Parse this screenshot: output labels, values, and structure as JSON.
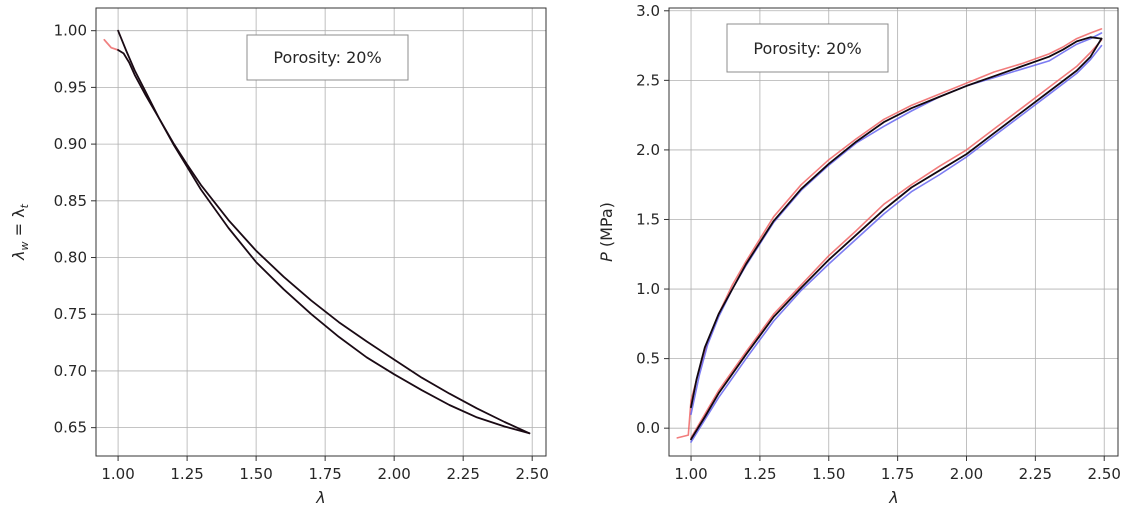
{
  "chart_data": [
    {
      "type": "line",
      "title": "",
      "xlabel": "λ",
      "ylabel": "λw = λt",
      "ylabel_parts": {
        "base": "λ",
        "sub1": "w",
        "mid": " = λ",
        "sub2": "t"
      },
      "xlim": [
        0.92,
        2.55
      ],
      "ylim": [
        0.625,
        1.02
      ],
      "xticks": [
        1.0,
        1.25,
        1.5,
        1.75,
        2.0,
        2.25,
        2.5
      ],
      "xtick_labels": [
        "1.00",
        "1.25",
        "1.50",
        "1.75",
        "2.00",
        "2.25",
        "2.50"
      ],
      "yticks": [
        0.65,
        0.7,
        0.75,
        0.8,
        0.85,
        0.9,
        0.95,
        1.0
      ],
      "ytick_labels": [
        "0.65",
        "0.70",
        "0.75",
        "0.80",
        "0.85",
        "0.90",
        "0.95",
        "1.00"
      ],
      "grid": true,
      "annotation": "Porosity: 20%",
      "annotation_position": "top-center",
      "series": [
        {
          "color": "#f08080",
          "x": [
            0.95,
            0.975,
            1.0
          ],
          "y": [
            0.992,
            0.985,
            0.983
          ]
        },
        {
          "color": "#1a0a14",
          "x": [
            1.0,
            1.03,
            1.06,
            1.1,
            1.15,
            1.2,
            1.25,
            1.3,
            1.4,
            1.5,
            1.6,
            1.7,
            1.8,
            1.9,
            2.0,
            2.1,
            2.2,
            2.3,
            2.4,
            2.49
          ],
          "y": [
            1.0,
            0.982,
            0.965,
            0.946,
            0.922,
            0.9,
            0.88,
            0.86,
            0.826,
            0.796,
            0.772,
            0.75,
            0.73,
            0.712,
            0.697,
            0.683,
            0.67,
            0.659,
            0.651,
            0.645
          ]
        },
        {
          "color": "#1a0a14",
          "x": [
            1.0,
            1.02,
            1.04,
            1.06,
            1.1,
            1.15,
            1.2,
            1.25,
            1.3,
            1.4,
            1.5,
            1.6,
            1.7,
            1.8,
            1.9,
            2.0,
            2.1,
            2.2,
            2.3,
            2.4,
            2.49
          ],
          "y": [
            0.983,
            0.98,
            0.972,
            0.961,
            0.943,
            0.922,
            0.901,
            0.882,
            0.864,
            0.833,
            0.806,
            0.783,
            0.762,
            0.743,
            0.726,
            0.71,
            0.694,
            0.68,
            0.667,
            0.655,
            0.645
          ]
        }
      ]
    },
    {
      "type": "line",
      "title": "",
      "xlabel": "λ",
      "ylabel": "P (MPa)",
      "ylabel_parts": {
        "italic": "P",
        "rest": " (MPa)"
      },
      "xlim": [
        0.92,
        2.55
      ],
      "ylim": [
        -0.2,
        3.02
      ],
      "xticks": [
        1.0,
        1.25,
        1.5,
        1.75,
        2.0,
        2.25,
        2.5
      ],
      "xtick_labels": [
        "1.00",
        "1.25",
        "1.50",
        "1.75",
        "2.00",
        "2.25",
        "2.50"
      ],
      "yticks": [
        0.0,
        0.5,
        1.0,
        1.5,
        2.0,
        2.5,
        3.0
      ],
      "ytick_labels": [
        "0.0",
        "0.5",
        "1.0",
        "1.5",
        "2.0",
        "2.5",
        "3.0"
      ],
      "grid": true,
      "annotation": "Porosity: 20%",
      "annotation_position": "top-left",
      "series": [
        {
          "color": "#ef5b5b",
          "opacity": 0.8,
          "x": [
            0.95,
            0.99,
            1.0,
            1.03,
            1.06,
            1.1,
            1.15,
            1.2,
            1.3,
            1.4,
            1.5,
            1.6,
            1.7,
            1.8,
            1.9,
            2.0,
            2.1,
            2.2,
            2.3,
            2.35,
            2.4,
            2.45,
            2.49
          ],
          "y": [
            -0.07,
            -0.05,
            0.2,
            0.42,
            0.62,
            0.82,
            1.03,
            1.2,
            1.52,
            1.75,
            1.93,
            2.08,
            2.22,
            2.32,
            2.4,
            2.48,
            2.56,
            2.62,
            2.69,
            2.74,
            2.8,
            2.84,
            2.87
          ]
        },
        {
          "color": "#ef5b5b",
          "opacity": 0.8,
          "x": [
            1.0,
            1.05,
            1.1,
            1.2,
            1.3,
            1.4,
            1.5,
            1.6,
            1.7,
            1.8,
            1.9,
            2.0,
            2.1,
            2.2,
            2.3,
            2.4,
            2.45,
            2.49
          ],
          "y": [
            -0.07,
            0.1,
            0.27,
            0.55,
            0.82,
            1.03,
            1.24,
            1.42,
            1.61,
            1.75,
            1.88,
            2.0,
            2.15,
            2.3,
            2.45,
            2.6,
            2.7,
            2.79
          ]
        },
        {
          "color": "#5b5bef",
          "opacity": 0.8,
          "x": [
            1.0,
            1.03,
            1.06,
            1.1,
            1.15,
            1.2,
            1.3,
            1.4,
            1.5,
            1.6,
            1.7,
            1.8,
            1.9,
            2.0,
            2.1,
            2.2,
            2.3,
            2.35,
            2.4,
            2.45,
            2.49
          ],
          "y": [
            0.1,
            0.38,
            0.6,
            0.8,
            1.0,
            1.17,
            1.48,
            1.71,
            1.89,
            2.05,
            2.17,
            2.28,
            2.38,
            2.46,
            2.52,
            2.58,
            2.64,
            2.7,
            2.76,
            2.8,
            2.84
          ]
        },
        {
          "color": "#5b5bef",
          "opacity": 0.8,
          "x": [
            1.0,
            1.05,
            1.1,
            1.2,
            1.3,
            1.4,
            1.5,
            1.6,
            1.7,
            1.8,
            1.9,
            2.0,
            2.1,
            2.2,
            2.3,
            2.4,
            2.45,
            2.49
          ],
          "y": [
            -0.1,
            0.06,
            0.22,
            0.5,
            0.77,
            0.99,
            1.18,
            1.36,
            1.54,
            1.7,
            1.82,
            1.95,
            2.1,
            2.25,
            2.4,
            2.55,
            2.65,
            2.75
          ]
        },
        {
          "color": "#120810",
          "x": [
            1.0,
            1.02,
            1.05,
            1.1,
            1.15,
            1.2,
            1.3,
            1.4,
            1.5,
            1.6,
            1.7,
            1.8,
            1.9,
            2.0,
            2.1,
            2.2,
            2.3,
            2.35,
            2.4,
            2.45,
            2.49
          ],
          "y": [
            0.15,
            0.35,
            0.58,
            0.82,
            1.0,
            1.18,
            1.49,
            1.72,
            1.9,
            2.06,
            2.2,
            2.3,
            2.38,
            2.46,
            2.53,
            2.6,
            2.67,
            2.72,
            2.78,
            2.81,
            2.8
          ]
        },
        {
          "color": "#120810",
          "x": [
            1.0,
            1.05,
            1.1,
            1.2,
            1.3,
            1.4,
            1.5,
            1.6,
            1.7,
            1.8,
            1.9,
            2.0,
            2.1,
            2.2,
            2.3,
            2.4,
            2.45,
            2.49
          ],
          "y": [
            -0.08,
            0.08,
            0.25,
            0.53,
            0.8,
            1.01,
            1.21,
            1.39,
            1.57,
            1.73,
            1.85,
            1.97,
            2.12,
            2.27,
            2.42,
            2.57,
            2.67,
            2.8
          ]
        }
      ]
    }
  ]
}
